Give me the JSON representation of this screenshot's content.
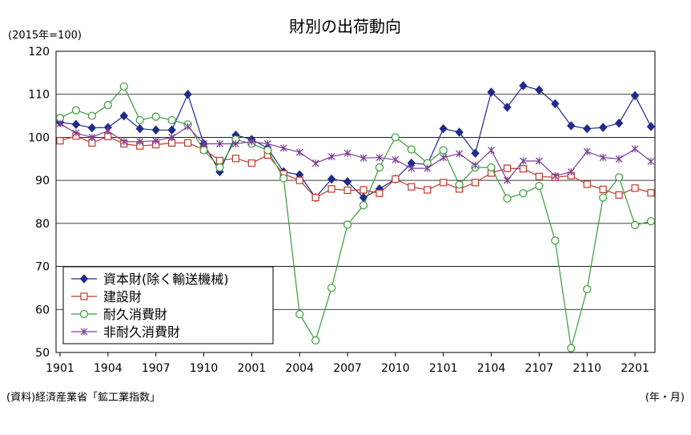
{
  "chart_data": {
    "type": "line",
    "title": "財別の出荷動向",
    "unit_label": "(2015年=100)",
    "source": "(資料)経済産業省「鉱工業指数」",
    "x_unit_label": "(年・月)",
    "ylim": [
      50,
      120
    ],
    "yticks": [
      "50",
      "60",
      "70",
      "80",
      "90",
      "100",
      "110",
      "120"
    ],
    "grid": true,
    "legend_position": "bottom-left",
    "x": [
      "1901",
      "1902",
      "1903",
      "1904",
      "1905",
      "1906",
      "1907",
      "1908",
      "1909",
      "1910",
      "1911",
      "1912",
      "2001",
      "2002",
      "2003",
      "2004",
      "2005",
      "2006",
      "2007",
      "2008",
      "2009",
      "2010",
      "2011",
      "2012",
      "2101",
      "2102",
      "2103",
      "2104",
      "2105",
      "2106",
      "2107",
      "2108",
      "2109",
      "2110",
      "2111",
      "2112",
      "2201",
      "2202"
    ],
    "xticks": [
      "1901",
      "1904",
      "1907",
      "1910",
      "2001",
      "2004",
      "2007",
      "2010",
      "2101",
      "2104",
      "2107",
      "2110",
      "2201"
    ],
    "series": [
      {
        "name": "資本財(除く輸送機械)",
        "color": "#1f2a8c",
        "marker": "diamond",
        "values": [
          103.5,
          103.0,
          102.2,
          102.3,
          105.0,
          102.0,
          101.7,
          101.7,
          110.0,
          98.5,
          92.0,
          100.5,
          99.5,
          97.5,
          92.0,
          91.3,
          86.0,
          90.3,
          89.7,
          86.0,
          88.0,
          90.3,
          94.0,
          93.7,
          102.0,
          101.2,
          96.3,
          110.5,
          107.0,
          112.0,
          111.0,
          107.8,
          102.7,
          102.0,
          102.3,
          103.3,
          109.7,
          102.5
        ]
      },
      {
        "name": "建設財",
        "color": "#c0392b",
        "marker": "square",
        "values": [
          99.2,
          100.3,
          98.7,
          100.2,
          98.5,
          98.0,
          98.3,
          98.7,
          98.7,
          97.2,
          94.6,
          95.1,
          94.0,
          95.9,
          91.5,
          90.0,
          86.0,
          88.0,
          87.7,
          87.8,
          87.0,
          90.3,
          88.5,
          87.8,
          89.5,
          88.0,
          89.5,
          91.7,
          92.8,
          92.7,
          90.9,
          90.7,
          91.1,
          89.1,
          87.9,
          86.6,
          88.2,
          87.1
        ]
      },
      {
        "name": "耐久消費財",
        "color": "#3a9a3a",
        "marker": "circle",
        "values": [
          104.5,
          106.3,
          105.0,
          107.5,
          111.8,
          104.0,
          104.8,
          104.0,
          103.0,
          97.0,
          93.0,
          99.5,
          98.5,
          97.0,
          90.5,
          58.9,
          52.8,
          65.0,
          79.7,
          84.2,
          93.0,
          100.0,
          97.2,
          94.0,
          97.0,
          89.0,
          93.0,
          93.0,
          85.8,
          87.0,
          88.7,
          76.0,
          51.0,
          64.7,
          86.0,
          90.7,
          79.6,
          80.5
        ]
      },
      {
        "name": "非耐久消費財",
        "color": "#7d3c98",
        "marker": "star",
        "values": [
          103.2,
          101.0,
          100.0,
          101.5,
          99.0,
          99.0,
          99.2,
          100.0,
          102.5,
          98.5,
          98.5,
          98.5,
          99.0,
          98.5,
          97.5,
          96.5,
          94.0,
          95.5,
          96.3,
          95.2,
          95.3,
          94.8,
          92.8,
          92.8,
          95.3,
          96.2,
          93.5,
          97.0,
          90.0,
          94.5,
          94.5,
          91.0,
          92.0,
          96.7,
          95.3,
          95.0,
          97.3,
          94.4
        ]
      }
    ]
  }
}
